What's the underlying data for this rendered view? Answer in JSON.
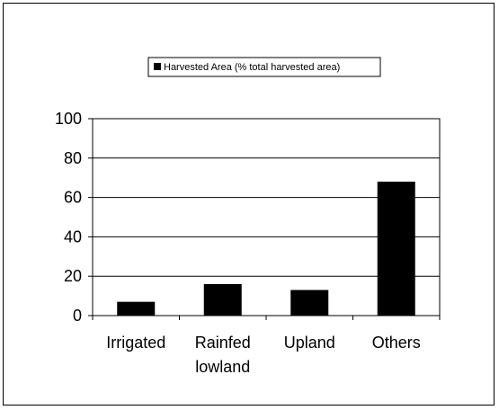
{
  "chart_data": {
    "type": "bar",
    "categories": [
      [
        "Irrigated"
      ],
      [
        "Rainfed",
        "lowland"
      ],
      [
        "Upland"
      ],
      [
        "Others"
      ]
    ],
    "series": [
      {
        "name": "Harvested Area (% total harvested area)",
        "values": [
          7,
          16,
          13,
          68
        ],
        "color": "#000000"
      }
    ],
    "ylim": [
      0,
      100
    ],
    "yticks": [
      0,
      20,
      40,
      60,
      80,
      100
    ],
    "grid": true,
    "legend_position": "top-center",
    "xlabel": "",
    "ylabel": "",
    "title": ""
  }
}
